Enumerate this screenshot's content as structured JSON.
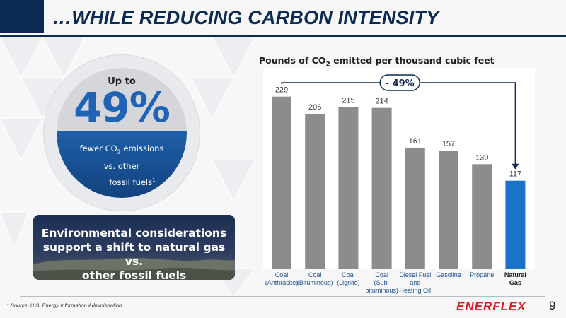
{
  "slide": {
    "title": "…WHILE REDUCING CARBON INTENSITY",
    "page_number": "9",
    "footnote_marker": "1",
    "footnote": " Source: U.S. Energy Information Administration",
    "logo": "ENERFLEX",
    "colors": {
      "navy": "#0d2a52",
      "accent_blue": "#1e63b6",
      "bar_gray": "#8c8c8c",
      "highlight_bar": "#1a73c9",
      "logo_red": "#d71e28"
    }
  },
  "badge": {
    "upto": "Up to",
    "value": "49%",
    "line1": "fewer CO",
    "line1_sub": "2",
    "line1_end": " emissions",
    "line2": "vs. other",
    "line3": "fossil fuels",
    "line3_sup": "1"
  },
  "env_box": {
    "line1": "Environmental considerations",
    "line2": "support a shift to natural gas vs.",
    "line3": "other fossil fuels"
  },
  "chart_data": {
    "type": "bar",
    "title_main": "Pounds of CO",
    "title_sub": "2",
    "title_end": " emitted per thousand cubic feet",
    "categories": [
      [
        "Coal",
        "(Anthracite)"
      ],
      [
        "Coal",
        "(Bituminous)"
      ],
      [
        "Coal",
        "(Lignite)"
      ],
      [
        "Coal",
        "(Sub-",
        "bituminous)"
      ],
      [
        "Diesel Fuel",
        "and",
        "Heating Oil"
      ],
      [
        "Gasoline"
      ],
      [
        "Propane"
      ],
      [
        "Natural",
        "Gas"
      ]
    ],
    "values": [
      229,
      206,
      215,
      214,
      161,
      157,
      139,
      117
    ],
    "value_labels": [
      "229",
      "206",
      "215",
      "214",
      "161",
      "157",
      "139",
      "117"
    ],
    "highlight_index": 7,
    "ylim": [
      0,
      240
    ],
    "annotation": "- 49%",
    "annotation_from": 0,
    "annotation_to": 7
  }
}
